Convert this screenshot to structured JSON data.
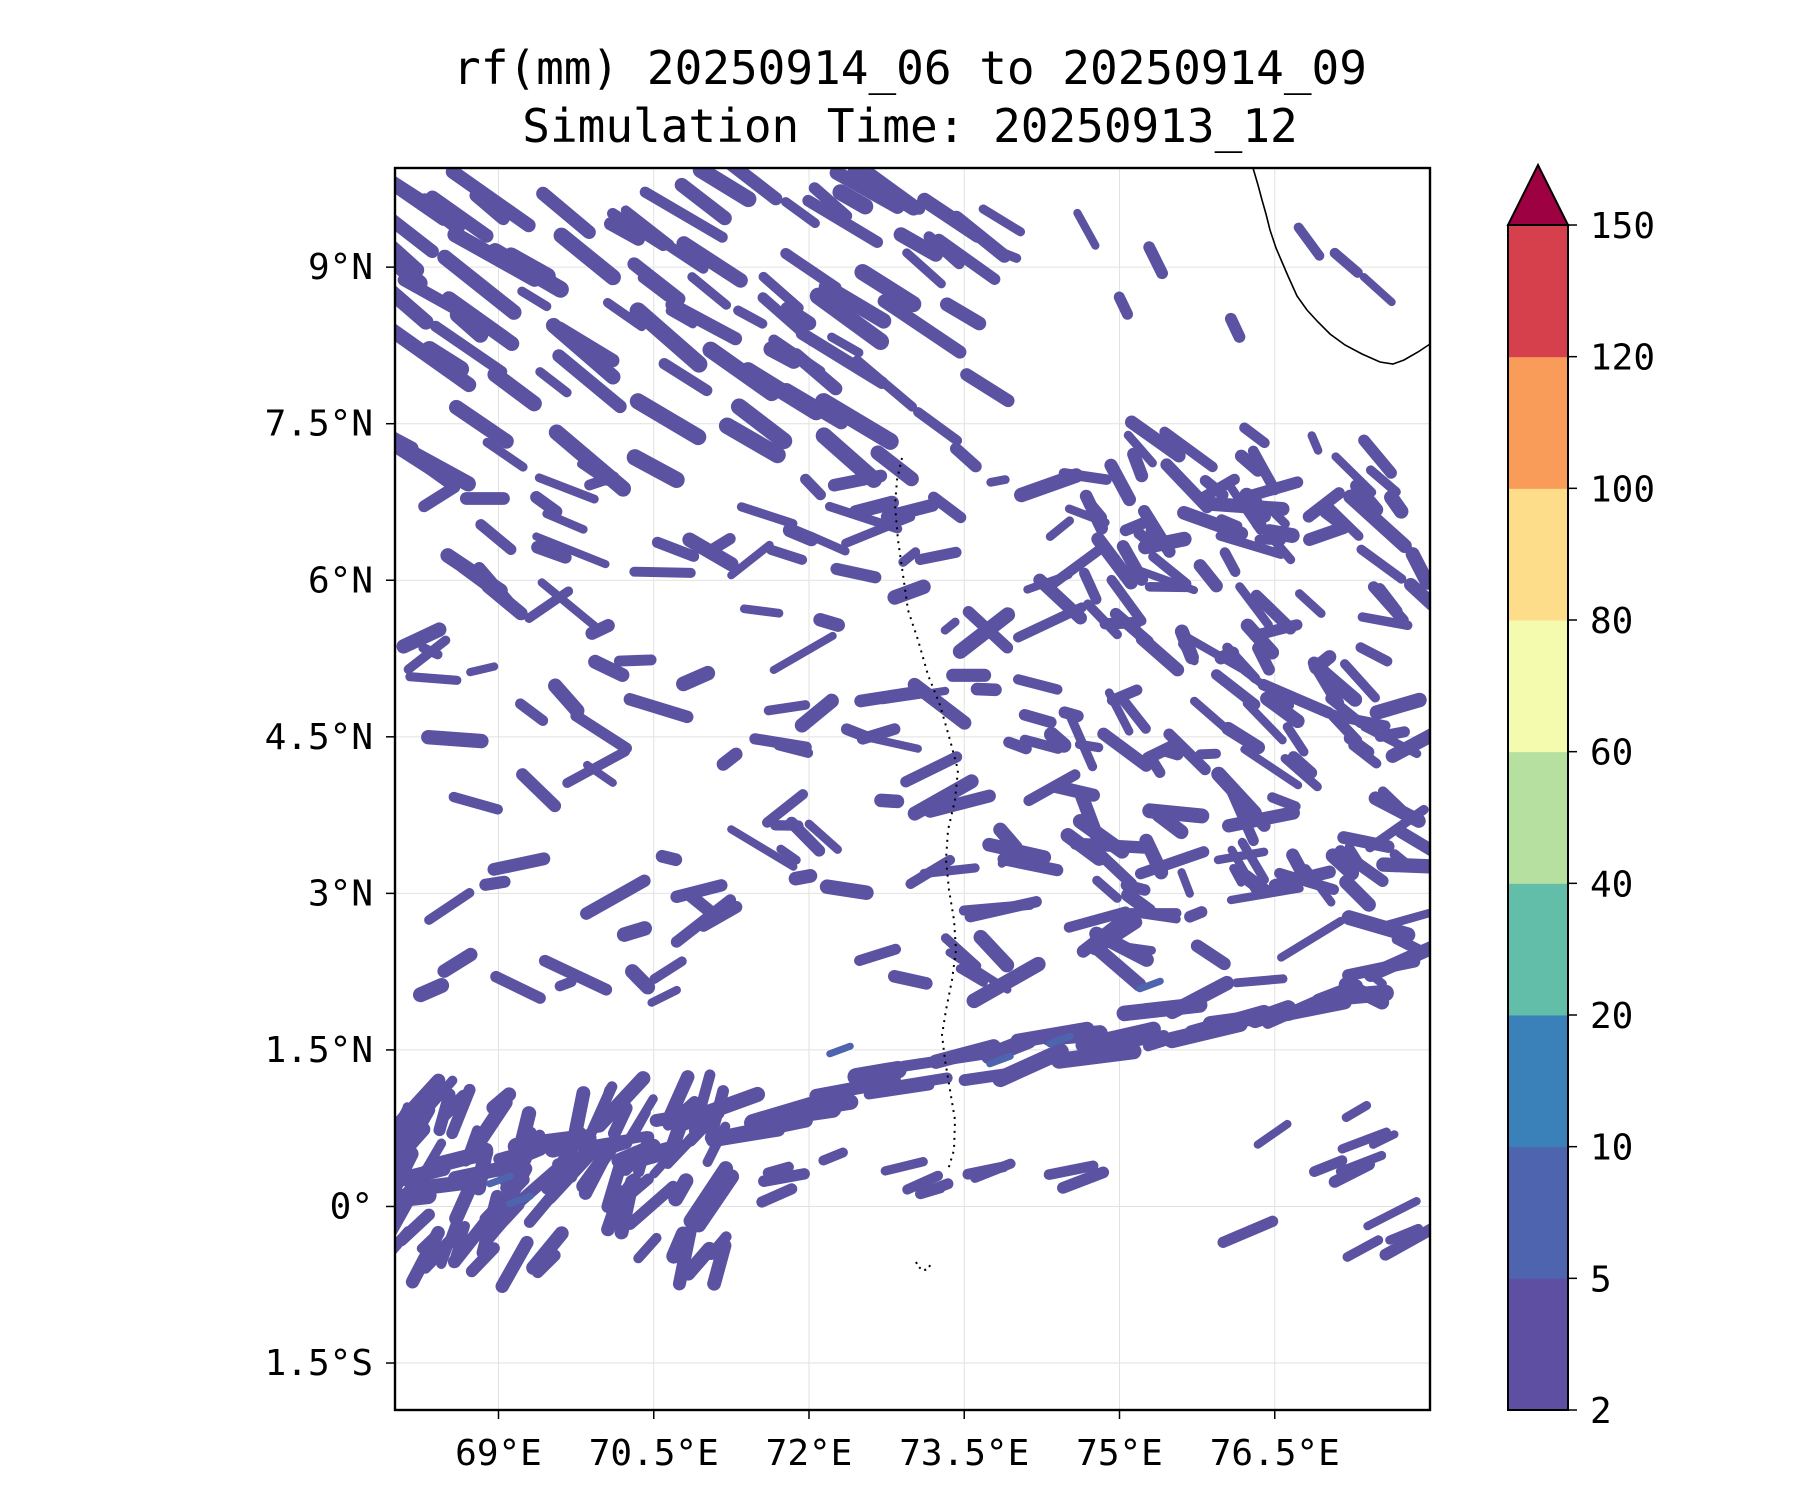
{
  "title": {
    "line1": "rf(mm) 20250914_06 to 20250914_09",
    "line2": "Simulation Time: 20250913_12"
  },
  "map": {
    "lon_range": [
      68.0,
      78.0
    ],
    "lat_range": [
      -1.95,
      9.95
    ],
    "lon_ticks": [
      {
        "value": 69.0,
        "label": "69°E"
      },
      {
        "value": 70.5,
        "label": "70.5°E"
      },
      {
        "value": 72.0,
        "label": "72°E"
      },
      {
        "value": 73.5,
        "label": "73.5°E"
      },
      {
        "value": 75.0,
        "label": "75°E"
      },
      {
        "value": 76.5,
        "label": "76.5°E"
      }
    ],
    "lat_ticks": [
      {
        "value": 9.0,
        "label": "9°N"
      },
      {
        "value": 7.5,
        "label": "7.5°N"
      },
      {
        "value": 6.0,
        "label": "6°N"
      },
      {
        "value": 4.5,
        "label": "4.5°N"
      },
      {
        "value": 3.0,
        "label": "3°N"
      },
      {
        "value": 1.5,
        "label": "1.5°N"
      },
      {
        "value": 0.0,
        "label": "0°"
      },
      {
        "value": -1.5,
        "label": "1.5°S"
      }
    ],
    "gridlines": true,
    "coastline": "southern tip of India (top-right corner)",
    "rain_color": "#5b52a2"
  },
  "colorbar": {
    "levels": [
      {
        "label": "2"
      },
      {
        "label": "5"
      },
      {
        "label": "10"
      },
      {
        "label": "20"
      },
      {
        "label": "40"
      },
      {
        "label": "60"
      },
      {
        "label": "80"
      },
      {
        "label": "100"
      },
      {
        "label": "120"
      },
      {
        "label": "150"
      }
    ],
    "colors": [
      "#5e4fa2",
      "#4e64ae",
      "#3a80b9",
      "#62bda9",
      "#b5e0a0",
      "#f4faae",
      "#fddd8a",
      "#f99b59",
      "#d6404d"
    ],
    "extend_color": "#9e0142",
    "extend": "max"
  }
}
